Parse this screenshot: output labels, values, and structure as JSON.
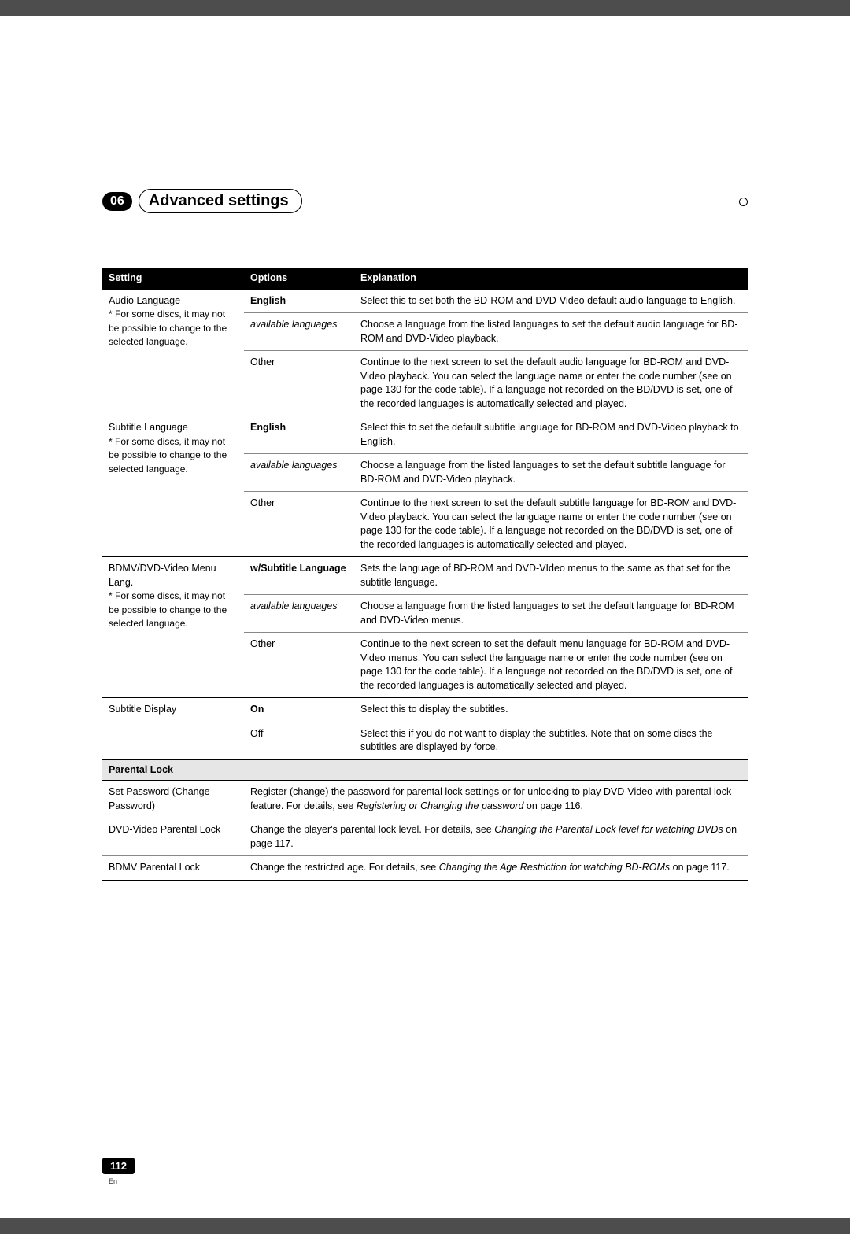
{
  "chapter": {
    "num": "06",
    "title": "Advanced settings"
  },
  "headers": {
    "setting": "Setting",
    "options": "Options",
    "explanation": "Explanation"
  },
  "note_text": "* For some discs, it may not be possible to change to the selected language.",
  "groups": [
    {
      "setting": "Audio Language",
      "rows": [
        {
          "option": "English",
          "option_bold": true,
          "explain": "Select this to set both the BD-ROM and DVD-Video default audio language to English."
        },
        {
          "option": "available languages",
          "option_italic": true,
          "explain": "Choose a language from the listed languages to set the default audio language for BD-ROM and DVD-Video playback."
        },
        {
          "option": "Other",
          "explain": "Continue to the next screen to set the default audio language for BD-ROM and DVD-Video playback. You can select the language name or enter the code number (see on page 130 for the code table). If a language not recorded on the BD/DVD is set, one of the recorded languages is automatically selected and played."
        }
      ]
    },
    {
      "setting": "Subtitle Language",
      "rows": [
        {
          "option": "English",
          "option_bold": true,
          "explain": "Select this to set the default subtitle language for BD-ROM and DVD-Video playback to English."
        },
        {
          "option": "available languages",
          "option_italic": true,
          "explain": "Choose a language from the listed languages to set the default subtitle language for BD-ROM and DVD-Video playback."
        },
        {
          "option": "Other",
          "explain": "Continue to the next screen to set the default subtitle language for BD-ROM and DVD-Video playback. You can select the language name or enter the code number (see on page 130 for the code table). If a language not recorded on the BD/DVD is set, one of the recorded languages is automatically selected and played."
        }
      ]
    },
    {
      "setting": "BDMV/DVD-Video Menu Lang.",
      "rows": [
        {
          "option": "w/Subtitle Language",
          "option_bold": true,
          "explain": "Sets the language of BD-ROM and DVD-VIdeo menus to the same as that set for the subtitle language."
        },
        {
          "option": "available languages",
          "option_italic": true,
          "explain": "Choose a language from the listed languages to set the default language for BD-ROM and DVD-Video menus."
        },
        {
          "option": "Other",
          "explain": "Continue to the next screen to set the default menu language for BD-ROM and DVD-Video menus. You can select the language name or enter the code number (see on page 130 for the code table). If a language not recorded on the BD/DVD is set, one of the recorded languages is automatically selected and played."
        }
      ]
    },
    {
      "setting": "Subtitle Display",
      "no_note": true,
      "rows": [
        {
          "option": "On",
          "option_bold": true,
          "explain": "Select this to display the subtitles."
        },
        {
          "option": "Off",
          "explain": "Select this if you do not want to display the subtitles. Note that on some discs the subtitles are displayed by force."
        }
      ]
    }
  ],
  "section": {
    "title": "Parental Lock"
  },
  "parental_rows": [
    {
      "setting": "Set Password (Change Password)",
      "explain_pre": "Register (change) the password for parental lock settings or for unlocking to play DVD-Video with parental lock feature. For details, see ",
      "explain_ital": "Registering or Changing the password",
      "explain_post": " on page 116."
    },
    {
      "setting": "DVD-Video Parental Lock",
      "explain_pre": "Change the player's parental lock level. For details, see ",
      "explain_ital": "Changing the Parental Lock level for watching DVDs",
      "explain_post": " on page 117."
    },
    {
      "setting": "BDMV Parental Lock",
      "explain_pre": "Change the restricted age. For details, see ",
      "explain_ital": "Changing the Age Restriction for watching BD-ROMs",
      "explain_post": " on page 117."
    }
  ],
  "page_number": "112",
  "page_lang": "En"
}
